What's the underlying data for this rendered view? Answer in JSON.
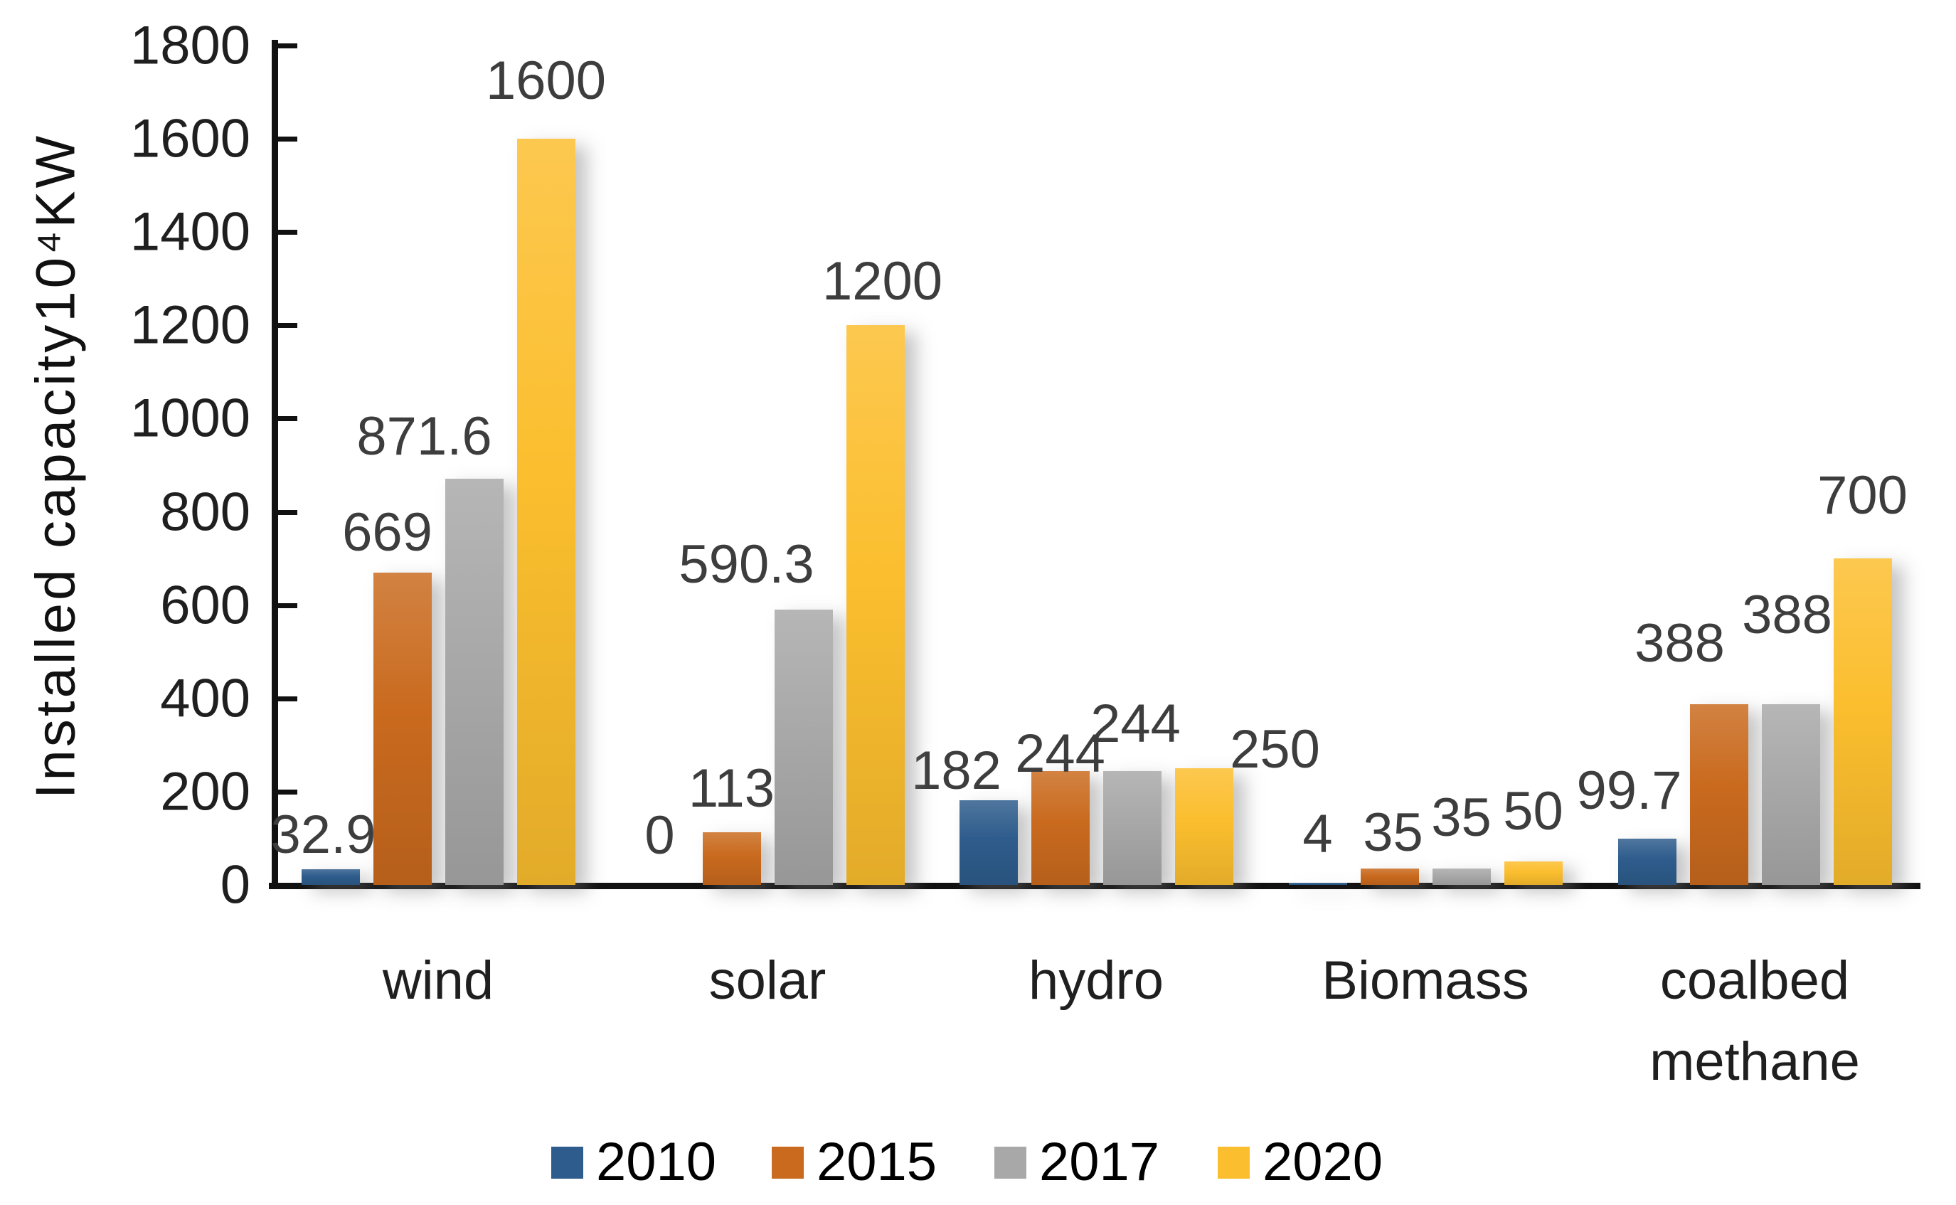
{
  "chart_data": {
    "type": "bar",
    "title": "",
    "ylabel": "Installed capacity10⁴KW",
    "xlabel": "",
    "categories": [
      "wind",
      "solar",
      "hydro",
      "Biomass",
      "coalbed methane"
    ],
    "series": [
      {
        "name": "2010",
        "color": "#2E5C8C",
        "values": [
          32.9,
          0,
          182,
          4,
          99.7
        ]
      },
      {
        "name": "2015",
        "color": "#C96A1E",
        "values": [
          669,
          113,
          244,
          35,
          388
        ]
      },
      {
        "name": "2017",
        "color": "#A8A8A8",
        "values": [
          871.6,
          590.3,
          244,
          35,
          388
        ]
      },
      {
        "name": "2020",
        "color": "#FBBE2E",
        "values": [
          1600,
          1200,
          250,
          50,
          700
        ]
      }
    ],
    "data_labels_shown": true,
    "ylim": [
      0,
      1800
    ],
    "ytick_step": 200,
    "ytick_labels": [
      "0",
      "200",
      "400",
      "600",
      "800",
      "1000",
      "1200",
      "1400",
      "1600",
      "1800"
    ],
    "grid": false,
    "legend_position": "bottom",
    "axis_color": "#111111",
    "label_color": "#3d3d3d",
    "background": "#ffffff"
  }
}
